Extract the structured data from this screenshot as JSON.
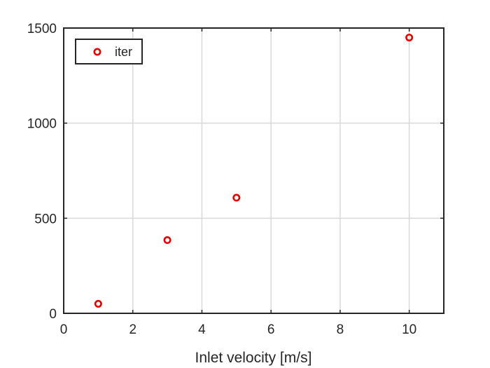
{
  "chart_data": {
    "type": "scatter",
    "title": "",
    "xlabel": "Inlet velocity [m/s]",
    "ylabel": "",
    "xlim": [
      0,
      11
    ],
    "ylim": [
      0,
      1500
    ],
    "xticks": [
      0,
      2,
      4,
      6,
      8,
      10
    ],
    "yticks": [
      0,
      500,
      1000,
      1500
    ],
    "xtick_labels": [
      "0",
      "2",
      "4",
      "6",
      "8",
      "10"
    ],
    "ytick_labels": [
      "0",
      "500",
      "1000",
      "1500"
    ],
    "grid": true,
    "legend": {
      "placement": "top-left",
      "entries": [
        "iter"
      ]
    },
    "series": [
      {
        "name": "iter",
        "marker": "circle-open",
        "color": "#e60000",
        "x": [
          1,
          3,
          5,
          10
        ],
        "y": [
          50,
          385,
          608,
          1450
        ]
      }
    ]
  }
}
